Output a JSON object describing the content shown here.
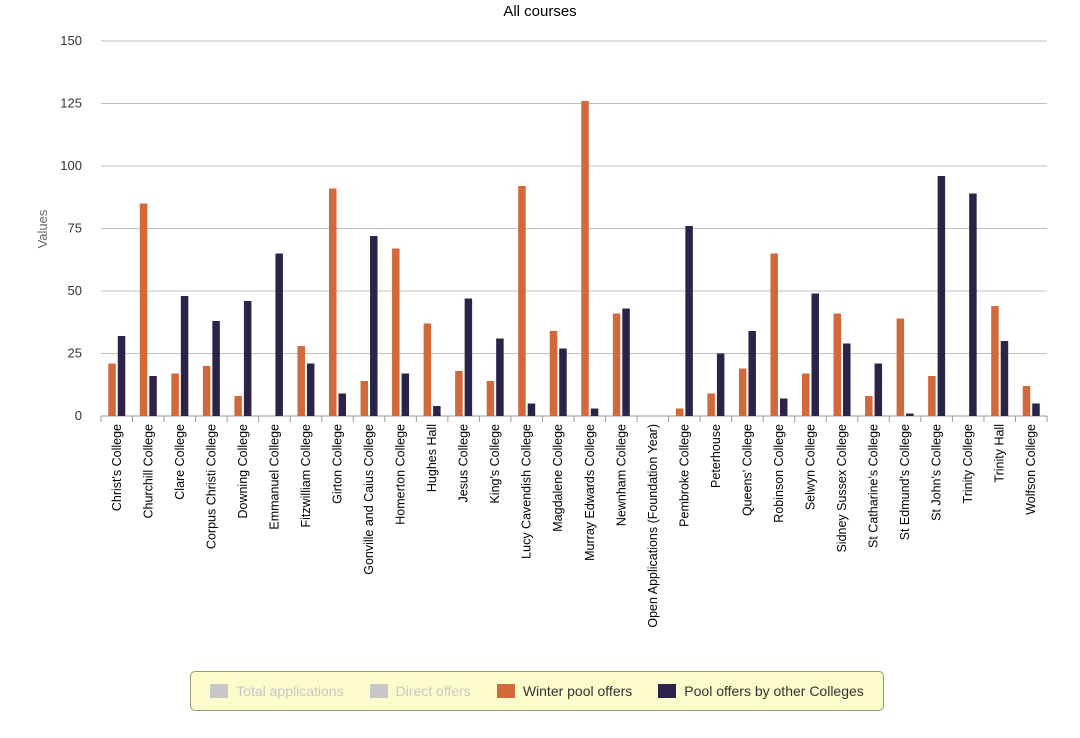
{
  "chart_data": {
    "type": "bar",
    "title": "All courses",
    "ylabel": "Values",
    "xlabel": "",
    "ylim": [
      0,
      150
    ],
    "yticks": [
      0,
      25,
      50,
      75,
      100,
      125,
      150
    ],
    "grid": true,
    "legend_placement": "bottom",
    "categories": [
      "Christ's College",
      "Churchill College",
      "Clare College",
      "Corpus Christi College",
      "Downing College",
      "Emmanuel College",
      "Fitzwilliam College",
      "Girton College",
      "Gonville and Caius College",
      "Homerton College",
      "Hughes Hall",
      "Jesus College",
      "King's College",
      "Lucy Cavendish College",
      "Magdalene College",
      "Murray Edwards College",
      "Newnham College",
      "Open Applications (Foundation Year)",
      "Pembroke College",
      "Peterhouse",
      "Queens' College",
      "Robinson College",
      "Selwyn College",
      "Sidney Sussex College",
      "St Catharine's College",
      "St Edmund's College",
      "St John's College",
      "Trinity College",
      "Trinity Hall",
      "Wolfson College"
    ],
    "series": [
      {
        "name": "Winter pool offers",
        "color": "#d2693a",
        "values": [
          21,
          85,
          17,
          20,
          8,
          0,
          28,
          91,
          14,
          67,
          37,
          18,
          14,
          92,
          34,
          126,
          41,
          0,
          3,
          9,
          19,
          65,
          17,
          41,
          8,
          39,
          16,
          0,
          44,
          12
        ]
      },
      {
        "name": "Pool offers by other Colleges",
        "color": "#2c2448",
        "values": [
          32,
          16,
          48,
          38,
          46,
          65,
          21,
          9,
          72,
          17,
          4,
          47,
          31,
          5,
          27,
          3,
          43,
          0,
          76,
          25,
          34,
          7,
          49,
          29,
          21,
          1,
          96,
          89,
          30,
          5
        ]
      }
    ],
    "hidden_series": [
      {
        "name": "Total applications",
        "color": "#c8c8c8"
      },
      {
        "name": "Direct offers",
        "color": "#c8c8c8"
      }
    ]
  },
  "legend": {
    "items": [
      {
        "label": "Total applications",
        "color": "#c8c8c8",
        "hidden": true
      },
      {
        "label": "Direct offers",
        "color": "#c8c8c8",
        "hidden": true
      },
      {
        "label": "Winter pool offers",
        "color": "#d2693a",
        "hidden": false
      },
      {
        "label": "Pool offers by other Colleges",
        "color": "#2c2448",
        "hidden": false
      }
    ]
  }
}
